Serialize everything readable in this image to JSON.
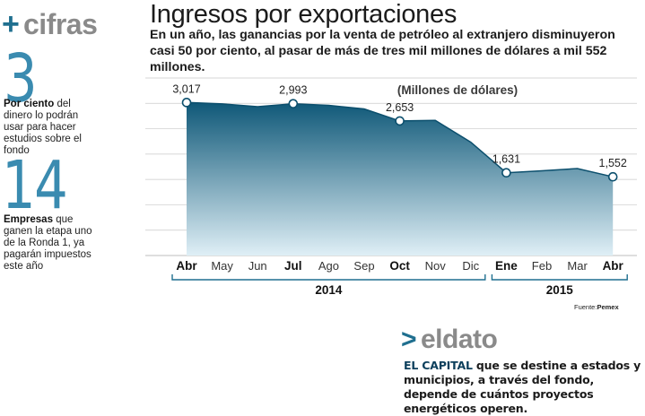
{
  "sidebar": {
    "plus": "+",
    "heading": "cifras",
    "stat1": {
      "number": "3",
      "bold": "Por ciento",
      "text": "del dinero lo podrán usar para hacer estudios sobre el fondo"
    },
    "stat2": {
      "number": "14",
      "bold": "Empresas",
      "text": "que ganen la etapa uno de la Ronda 1, ya pagarán impuestos este año"
    }
  },
  "header": {
    "title": "Ingresos por exportaciones",
    "subtitle": "En un año, las ganancias por la venta de petróleo al extranjero disminuyeron casi 50 por ciento, al pasar de más de tres mil millones de dólares a mil 552 millones."
  },
  "source": {
    "prefix": "Fuente:",
    "name": "Pemex"
  },
  "eldato": {
    "arrow": ">",
    "heading": "eldato",
    "lead": "EL CAPITAL",
    "text": "que se destine a estados y municipios, a través del fondo, depende de cuántos proyectos energéticos operen."
  },
  "colors": {
    "accent": "#1f6f8f",
    "area_top": "#0f5878",
    "area_bottom": "#dfeff6",
    "grid": "#c9c9c9"
  },
  "chart_data": {
    "type": "area",
    "title": "Ingresos por exportaciones",
    "unit_label": "(Millones de dólares)",
    "categories": [
      "Abr",
      "May",
      "Jun",
      "Jul",
      "Ago",
      "Sep",
      "Oct",
      "Nov",
      "Dic",
      "Ene",
      "Feb",
      "Mar",
      "Abr"
    ],
    "bold_categories": [
      "Abr",
      "Jul",
      "Oct",
      "Ene"
    ],
    "values": [
      3017,
      2990,
      2935,
      2993,
      2960,
      2890,
      2653,
      2665,
      2235,
      1631,
      1670,
      1715,
      1552
    ],
    "labeled_points": [
      {
        "index": 0,
        "label": "3,017"
      },
      {
        "index": 3,
        "label": "2,993"
      },
      {
        "index": 6,
        "label": "2,653"
      },
      {
        "index": 9,
        "label": "1,631"
      },
      {
        "index": 12,
        "label": "1,552"
      }
    ],
    "year_groups": [
      {
        "label": "2014",
        "from": 0,
        "to": 8
      },
      {
        "label": "2015",
        "from": 9,
        "to": 12
      }
    ],
    "ylim": [
      0,
      3500
    ],
    "grid": true
  }
}
